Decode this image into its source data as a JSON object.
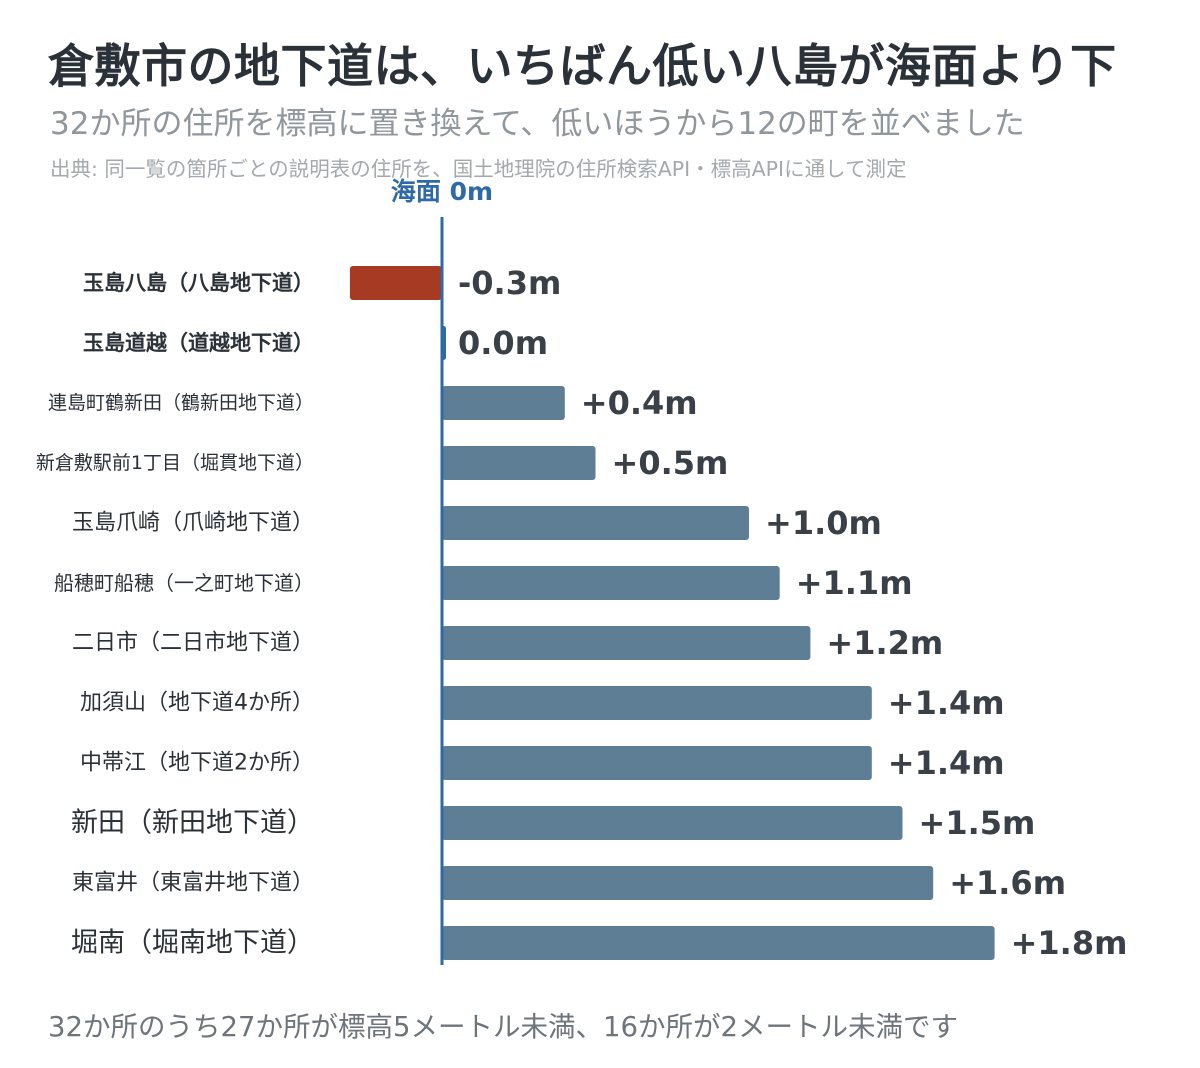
{
  "title": "倉敷市の地下道は、いちばん低い八島が海面より下",
  "subtitle": "32か所の住所を標高に置き換えて、低いほうから12の町を並べました",
  "source": "出典: 同一覧の箇所ごとの説明表の住所を、国土地理院の住所検索API・標高APIに通して測定",
  "footer": "32か所のうち27か所が標高5メートル未満、16か所が2メートル未満です",
  "colors": {
    "negative": "#a63a22",
    "positive": "#5e7e96",
    "zero_line": "#2e6aa6"
  },
  "chart_data": {
    "type": "bar",
    "orientation": "horizontal",
    "unit": "m",
    "zero_line_label": "海面 0m",
    "categories": [
      "玉島八島（八島地下道）",
      "玉島道越（道越地下道）",
      "連島町鶴新田（鶴新田地下道）",
      "新倉敷駅前1丁目（堀貫地下道）",
      "玉島爪崎（爪崎地下道）",
      "船穂町船穂（一之町地下道）",
      "二日市（二日市地下道）",
      "加須山（地下道4か所）",
      "中帯江（地下道2か所）",
      "新田（新田地下道）",
      "東富井（東富井地下道）",
      "堀南（堀南地下道）"
    ],
    "values": [
      -0.3,
      0.0,
      0.4,
      0.5,
      1.0,
      1.1,
      1.2,
      1.4,
      1.4,
      1.5,
      1.6,
      1.8
    ],
    "value_labels": [
      "-0.3m",
      "0.0m",
      "+0.4m",
      "+0.5m",
      "+1.0m",
      "+1.1m",
      "+1.2m",
      "+1.4m",
      "+1.4m",
      "+1.5m",
      "+1.6m",
      "+1.8m"
    ],
    "highlighted": [
      0,
      1
    ],
    "grid": false
  }
}
